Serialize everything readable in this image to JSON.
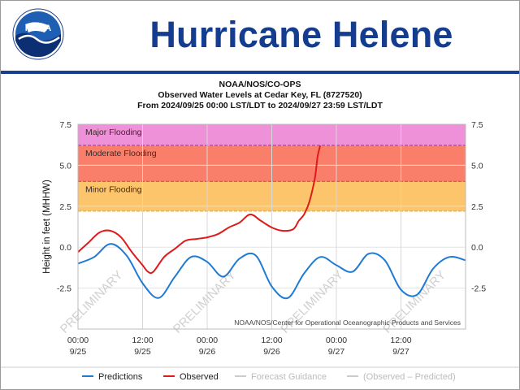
{
  "header": {
    "title": "Hurricane Helene",
    "logo_text": "NOAA"
  },
  "colors": {
    "header_blue": "#143d8f",
    "predictions": "#1f7ad4",
    "observed": "#e01919",
    "major": "#ee91d8",
    "moderate": "#fa7f6b",
    "minor": "#fcc46b"
  },
  "chart_data": {
    "type": "line",
    "title_lines": [
      "NOAA/NOS/CO-OPS",
      "Observed Water Levels at Cedar Key, FL (8727520)",
      "From 2024/09/25 00:00 LST/LDT to 2024/09/27 23:59 LST/LDT"
    ],
    "ylabel": "Height in feet (MHHW)",
    "ylim": [
      -5,
      7.5
    ],
    "xlim": [
      0,
      72
    ],
    "xunit": "hours since 2024/09/25 00:00",
    "yticks": [
      -2.5,
      0.0,
      2.5,
      5.0,
      7.5
    ],
    "ytick_labels": [
      "-2.5",
      "0.0",
      "2.5",
      "5.0",
      "7.5"
    ],
    "xticks": [
      {
        "x": 0,
        "time": "00:00",
        "date": "9/25"
      },
      {
        "x": 12,
        "time": "12:00",
        "date": "9/25"
      },
      {
        "x": 24,
        "time": "00:00",
        "date": "9/26"
      },
      {
        "x": 36,
        "time": "12:00",
        "date": "9/26"
      },
      {
        "x": 48,
        "time": "00:00",
        "date": "9/27"
      },
      {
        "x": 60,
        "time": "12:00",
        "date": "9/27"
      }
    ],
    "flood_zones": [
      {
        "name": "Major Flooding",
        "from": 6.2,
        "to": 7.5,
        "color": "#ee91d8",
        "line": "#7a1d6e"
      },
      {
        "name": "Moderate Flooding",
        "from": 4.0,
        "to": 6.2,
        "color": "#fa7f6b",
        "line": "#b01818"
      },
      {
        "name": "Minor Flooding",
        "from": 2.2,
        "to": 4.0,
        "color": "#fcc46b",
        "line": "#e8b24a"
      }
    ],
    "series": [
      {
        "name": "Predictions",
        "color": "#1f7ad4",
        "x": [
          0,
          3,
          6,
          9,
          12,
          15,
          18,
          21,
          24,
          27,
          30,
          33,
          36,
          39,
          42,
          45,
          48,
          51,
          54,
          57,
          60,
          63,
          66,
          69,
          72
        ],
        "y": [
          -1.0,
          -0.6,
          0.2,
          -0.5,
          -2.2,
          -3.1,
          -1.8,
          -0.6,
          -0.9,
          -1.8,
          -0.7,
          -0.5,
          -2.4,
          -3.1,
          -1.6,
          -0.6,
          -1.1,
          -1.5,
          -0.4,
          -0.8,
          -2.6,
          -2.9,
          -1.3,
          -0.6,
          -0.8
        ]
      },
      {
        "name": "Observed",
        "color": "#e01919",
        "x": [
          0,
          2,
          4,
          6,
          8,
          10,
          12,
          13,
          14,
          16,
          18,
          20,
          22,
          24,
          26,
          28,
          30,
          32,
          34,
          36,
          38,
          40,
          41,
          42,
          43,
          44,
          44.5,
          45
        ],
        "y": [
          -0.3,
          0.3,
          0.9,
          1.0,
          0.6,
          -0.3,
          -1.1,
          -1.5,
          -1.5,
          -0.6,
          -0.1,
          0.4,
          0.5,
          0.6,
          0.8,
          1.2,
          1.5,
          2.0,
          1.6,
          1.2,
          1.0,
          1.1,
          1.6,
          2.0,
          2.8,
          4.2,
          5.5,
          6.2
        ]
      }
    ],
    "legend": [
      {
        "label": "Predictions",
        "color": "#1f7ad4",
        "muted": false
      },
      {
        "label": "Observed",
        "color": "#e01919",
        "muted": false
      },
      {
        "label": "Forecast Guidance",
        "color": "#cccccc",
        "muted": true
      },
      {
        "label": "(Observed – Predicted)",
        "color": "#cccccc",
        "muted": true
      }
    ],
    "watermark": "PRELIMINARY",
    "watermark_positions_hours": [
      3,
      24,
      44,
      63
    ],
    "credit": "NOAA/NOS/Center for Operational Oceanographic Products and Services"
  }
}
